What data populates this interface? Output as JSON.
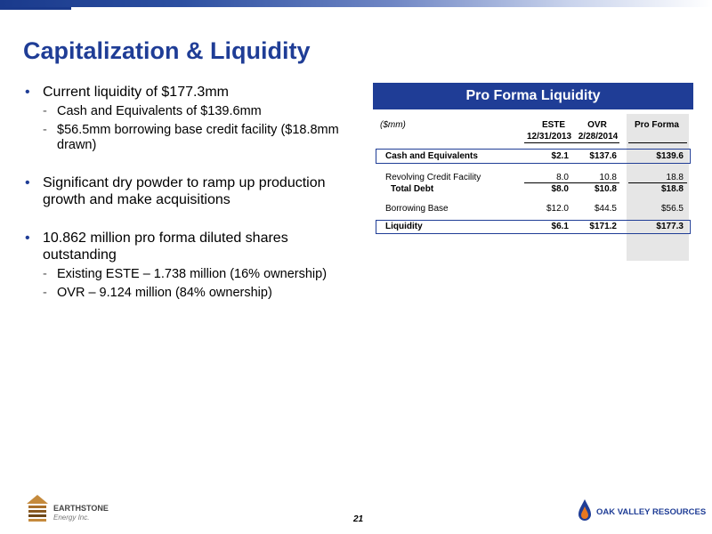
{
  "title": "Capitalization & Liquidity",
  "bullets": {
    "b1": "Current liquidity of $177.3mm",
    "b1_sub1": "Cash and Equivalents of $139.6mm",
    "b1_sub2": "$56.5mm borrowing base credit facility ($18.8mm drawn)",
    "b2": "Significant dry powder to ramp up production growth and make acquisitions",
    "b3": "10.862 million pro forma diluted shares outstanding",
    "b3_sub1": "Existing ESTE – 1.738 million (16% ownership)",
    "b3_sub2": "OVR – 9.124 million (84% ownership)"
  },
  "table": {
    "header": "Pro Forma Liquidity",
    "unit": "($mm)",
    "columns": {
      "este": "ESTE",
      "este_date": "12/31/2013",
      "ovr": "OVR",
      "ovr_date": "2/28/2014",
      "pro_forma": "Pro Forma"
    },
    "rows": {
      "cash": {
        "label": "Cash and Equivalents",
        "este": "$2.1",
        "ovr": "$137.6",
        "pf": "$139.6"
      },
      "revolver": {
        "label": "Revolving Credit Facility",
        "este": "8.0",
        "ovr": "10.8",
        "pf": "18.8"
      },
      "total_debt": {
        "label": "Total Debt",
        "este": "$8.0",
        "ovr": "$10.8",
        "pf": "$18.8"
      },
      "borrowing": {
        "label": "Borrowing Base",
        "este": "$12.0",
        "ovr": "$44.5",
        "pf": "$56.5"
      },
      "liquidity": {
        "label": "Liquidity",
        "este": "$6.1",
        "ovr": "$171.2",
        "pf": "$177.3"
      }
    }
  },
  "footer": {
    "page_number": "21",
    "left_logo_line1": "EARTHSTONE",
    "left_logo_line2": "Energy Inc.",
    "right_logo": "Oak Valley Resources"
  }
}
